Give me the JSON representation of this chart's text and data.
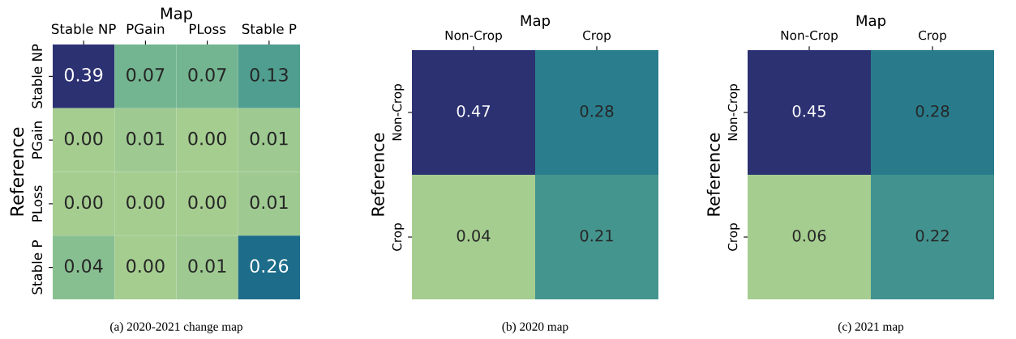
{
  "chart_data": [
    {
      "type": "heatmap",
      "xlabel": "Map",
      "ylabel": "Reference",
      "categories": [
        "Stable NP",
        "PGain",
        "PLoss",
        "Stable P"
      ],
      "y_categories": [
        "Stable NP",
        "PGain",
        "PLoss",
        "Stable P"
      ],
      "cells": [
        [
          0.39,
          0.07,
          0.07,
          0.13
        ],
        [
          0.0,
          0.01,
          0.0,
          0.01
        ],
        [
          0.0,
          0.0,
          0.0,
          0.01
        ],
        [
          0.04,
          0.0,
          0.01,
          0.26
        ]
      ],
      "data_labels": true,
      "cell_labels": [
        [
          "0.39",
          "0.07",
          "0.07",
          "0.13"
        ],
        [
          "0.00",
          "0.01",
          "0.00",
          "0.01"
        ],
        [
          "0.00",
          "0.00",
          "0.00",
          "0.01"
        ],
        [
          "0.04",
          "0.00",
          "0.01",
          "0.26"
        ]
      ],
      "annotations": [
        "(a) 2020-2021 change map"
      ]
    },
    {
      "type": "heatmap",
      "xlabel": "Map",
      "ylabel": "Reference",
      "categories": [
        "Non-Crop",
        "Crop"
      ],
      "y_categories": [
        "Non-Crop",
        "Crop"
      ],
      "cells": [
        [
          0.47,
          0.28
        ],
        [
          0.04,
          0.21
        ]
      ],
      "data_labels": true,
      "cell_labels": [
        [
          "0.47",
          "0.28"
        ],
        [
          "0.04",
          "0.21"
        ]
      ],
      "annotations": [
        "(b) 2020 map"
      ]
    },
    {
      "type": "heatmap",
      "xlabel": "Map",
      "ylabel": "Reference",
      "categories": [
        "Non-Crop",
        "Crop"
      ],
      "y_categories": [
        "Non-Crop",
        "Crop"
      ],
      "cells": [
        [
          0.45,
          0.28
        ],
        [
          0.06,
          0.22
        ]
      ],
      "data_labels": true,
      "cell_labels": [
        [
          "0.45",
          "0.28"
        ],
        [
          "0.06",
          "0.22"
        ]
      ],
      "annotations": [
        "(c) 2021 map"
      ]
    }
  ]
}
